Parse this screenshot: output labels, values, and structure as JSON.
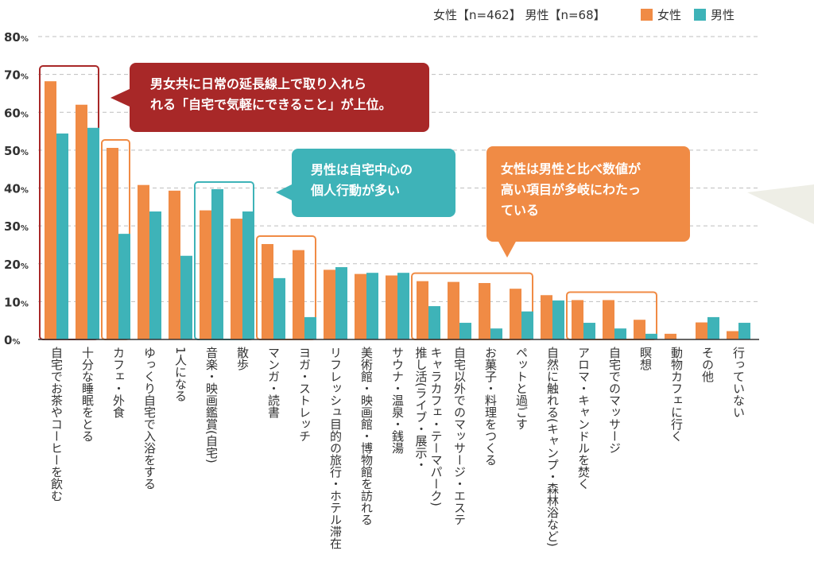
{
  "legend": {
    "sample_text": "女性【n=462】 男性【n=68】",
    "series_female": "女性",
    "series_male": "男性"
  },
  "colors": {
    "female": "#F08B45",
    "male": "#3EB3B8",
    "callout_red": "#A82828",
    "callout_teal": "#3EB3B8",
    "callout_orange": "#F08B45",
    "highlight_red": "#A82828",
    "highlight_orange": "#F08B45",
    "highlight_teal": "#3EB3B8",
    "grid": "#BFBFBF",
    "axis_text": "#333333"
  },
  "callouts": {
    "red": "男女共に日常の延長線上で取り入れら\nれる「自宅で気軽にできること」が上位。",
    "teal": "男性は自宅中心の\n個人行動が多い",
    "orange": "女性は男性と比べ数値が\n高い項目が多岐にわたっ\nている"
  },
  "chart_data": {
    "type": "bar",
    "title": "",
    "xlabel": "",
    "ylabel": "",
    "ylim": [
      0,
      80
    ],
    "yticks": [
      0,
      10,
      20,
      30,
      40,
      50,
      60,
      70,
      80
    ],
    "ytick_suffix": "%",
    "grid": true,
    "legend_position": "top-right",
    "categories": [
      "自宅でお茶やコーヒーを飲む",
      "十分な睡眠をとる",
      "カフェ・外食",
      "ゆっくり自宅で入浴をする",
      "1人になる",
      "音楽・映画鑑賞(自宅)",
      "散歩",
      "マンガ・読書",
      "ヨガ・ストレッチ",
      "リフレッシュ目的の旅行・ホテル滞在",
      "美術館・映画館・博物館を訪れる",
      "サウナ・温泉・銭湯",
      "推し活(ライブ・展示・キャラカフェ・テーマパーク)",
      "自宅以外でのマッサージ・エステ",
      "お菓子・料理をつくる",
      "ペットと過ごす",
      "自然に触れる(キャンプ・森林浴など)",
      "アロマ・キャンドルを焚く",
      "自宅でのマッサージ",
      "瞑想",
      "動物カフェに行く",
      "その他",
      "行っていない"
    ],
    "category_lines": [
      [
        "自宅でお茶やコーヒーを飲む"
      ],
      [
        "十分な睡眠をとる"
      ],
      [
        "カフェ・外食"
      ],
      [
        "ゆっくり自宅で入浴をする"
      ],
      [
        "1人になる"
      ],
      [
        "音楽・映画鑑賞(自宅)"
      ],
      [
        "散歩"
      ],
      [
        "マンガ・読書"
      ],
      [
        "ヨガ・ストレッチ"
      ],
      [
        "リフレッシュ目的の旅行・ホテル滞在"
      ],
      [
        "美術館・映画館・博物館を訪れる"
      ],
      [
        "サウナ・温泉・銭湯"
      ],
      [
        "推し活(ライブ・展示・",
        "キャラカフェ・テーマパーク)"
      ],
      [
        "自宅以外でのマッサージ・エステ"
      ],
      [
        "お菓子・料理をつくる"
      ],
      [
        "ペットと過ごす"
      ],
      [
        "自然に触れる(キャンプ・森林浴など)"
      ],
      [
        "アロマ・キャンドルを焚く"
      ],
      [
        "自宅でのマッサージ"
      ],
      [
        "瞑想"
      ],
      [
        "動物カフェに行く"
      ],
      [
        "その他"
      ],
      [
        "行っていない"
      ]
    ],
    "series": [
      {
        "name": "女性",
        "values": [
          68.2,
          62.0,
          50.6,
          40.8,
          39.3,
          34.1,
          31.9,
          25.2,
          23.6,
          18.4,
          17.3,
          16.9,
          15.4,
          15.2,
          14.9,
          13.4,
          11.7,
          10.4,
          10.4,
          5.2,
          1.5,
          4.5,
          2.2
        ]
      },
      {
        "name": "男性",
        "values": [
          54.4,
          55.9,
          27.9,
          33.8,
          22.1,
          39.7,
          33.8,
          16.2,
          5.9,
          19.1,
          17.6,
          17.6,
          8.8,
          4.4,
          2.9,
          7.4,
          10.3,
          4.4,
          2.9,
          1.5,
          0,
          5.9,
          4.4
        ]
      }
    ],
    "highlights": [
      {
        "color": "red",
        "from": 0,
        "to": 1
      },
      {
        "color": "orange",
        "from": 2,
        "to": 2
      },
      {
        "color": "teal",
        "from": 5,
        "to": 6
      },
      {
        "color": "orange",
        "from": 7,
        "to": 8
      },
      {
        "color": "orange",
        "from": 12,
        "to": 15
      },
      {
        "color": "orange",
        "from": 17,
        "to": 19
      }
    ]
  }
}
